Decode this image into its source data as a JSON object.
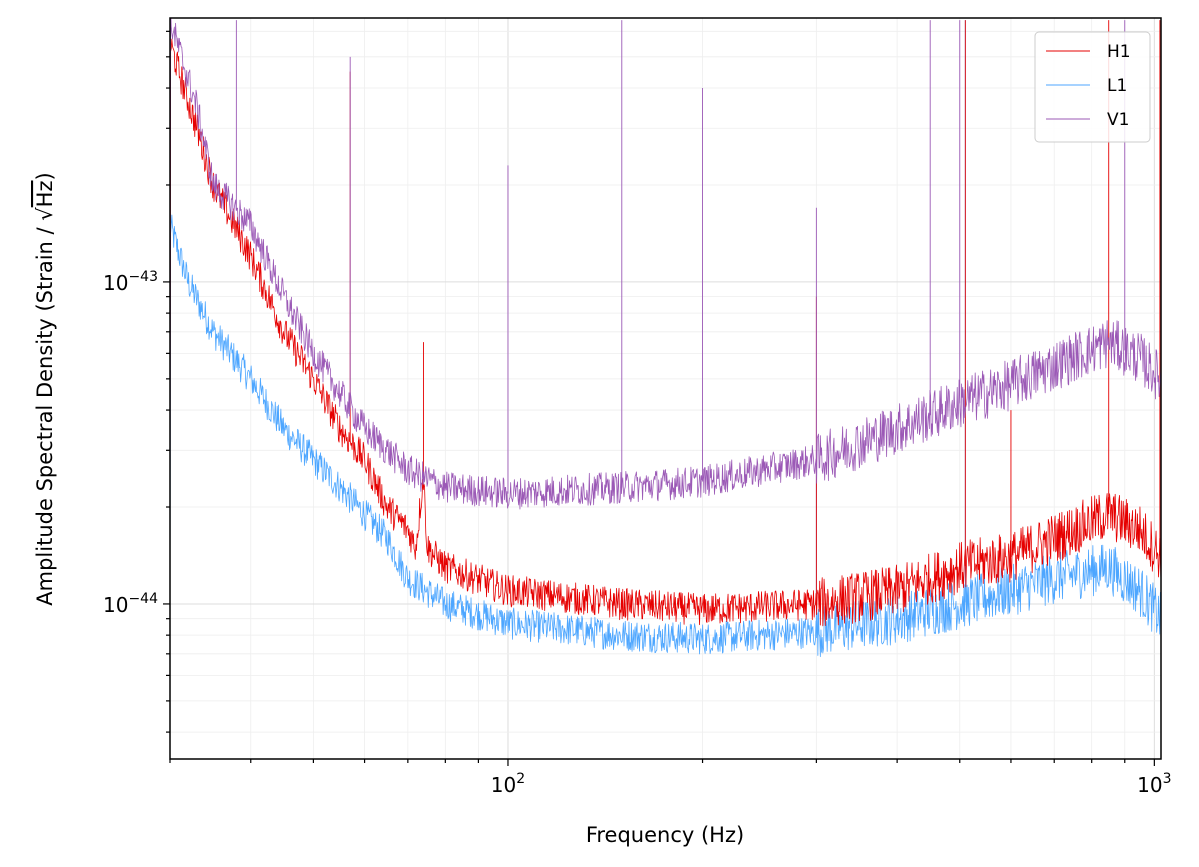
{
  "chart_data": {
    "type": "line",
    "title": "",
    "xlabel": "Frequency (Hz)",
    "ylabel_prefix": "Amplitude Spectral Density (Strain / ",
    "ylabel_radicand": "Hz",
    "ylabel_suffix": ")",
    "xscale": "log",
    "yscale": "log",
    "xlim": [
      30,
      1024
    ],
    "ylim": [
      3.3e-45,
      6.6e-43
    ],
    "grid": true,
    "legend_position": "top-right",
    "x_ticks": [
      {
        "value": 100,
        "base": "10",
        "exponent": "2"
      },
      {
        "value": 1000,
        "base": "10",
        "exponent": "3"
      }
    ],
    "y_ticks": [
      {
        "value": 1e-44,
        "base": "10",
        "exponent": "−44"
      },
      {
        "value": 1e-43,
        "base": "10",
        "exponent": "−43"
      }
    ],
    "series": [
      {
        "name": "L1",
        "color": "#4da6ff",
        "noise": 0.05,
        "points": [
          [
            30,
            1.5e-43
          ],
          [
            32,
            1e-43
          ],
          [
            35,
            7e-44
          ],
          [
            40,
            5e-44
          ],
          [
            45,
            3.5e-44
          ],
          [
            50,
            2.8e-44
          ],
          [
            55,
            2.3e-44
          ],
          [
            60,
            1.9e-44
          ],
          [
            65,
            1.6e-44
          ],
          [
            70,
            1.2e-44
          ],
          [
            80,
            1e-44
          ],
          [
            100,
            8.7e-45
          ],
          [
            150,
            8e-45
          ],
          [
            200,
            7.8e-45
          ],
          [
            300,
            8.2e-45
          ],
          [
            400,
            9e-45
          ],
          [
            500,
            1e-44
          ],
          [
            600,
            1.1e-44
          ],
          [
            700,
            1.2e-44
          ],
          [
            850,
            1.3e-44
          ],
          [
            950,
            1.1e-44
          ],
          [
            1024,
            9e-45
          ]
        ],
        "lines": [
          [
            300,
            3e-44
          ],
          [
            510,
            6.5e-43
          ]
        ]
      },
      {
        "name": "H1",
        "color": "#e60000",
        "noise": 0.05,
        "points": [
          [
            30,
            5.5e-43
          ],
          [
            33,
            3e-43
          ],
          [
            35,
            2e-43
          ],
          [
            40,
            1.2e-43
          ],
          [
            45,
            7e-44
          ],
          [
            50,
            5e-44
          ],
          [
            55,
            3.5e-44
          ],
          [
            60,
            2.8e-44
          ],
          [
            65,
            2e-44
          ],
          [
            70,
            1.7e-44
          ],
          [
            72,
            1.5e-44
          ],
          [
            74,
            2.5e-44
          ],
          [
            75,
            1.5e-44
          ],
          [
            80,
            1.3e-44
          ],
          [
            100,
            1.1e-44
          ],
          [
            150,
            1e-44
          ],
          [
            200,
            9.6e-45
          ],
          [
            300,
            1e-44
          ],
          [
            400,
            1.1e-44
          ],
          [
            500,
            1.3e-44
          ],
          [
            600,
            1.4e-44
          ],
          [
            700,
            1.6e-44
          ],
          [
            850,
            1.9e-44
          ],
          [
            950,
            1.7e-44
          ],
          [
            1024,
            1.4e-44
          ]
        ],
        "lines": [
          [
            57,
            4.5e-43
          ],
          [
            74,
            6.5e-44
          ],
          [
            300,
            9e-44
          ],
          [
            510,
            6.5e-43
          ],
          [
            600,
            4e-44
          ],
          [
            850,
            6.5e-43
          ],
          [
            1020,
            6.5e-43
          ]
        ]
      },
      {
        "name": "V1",
        "color": "#9b59b6",
        "noise": 0.05,
        "points": [
          [
            30,
            6.5e-43
          ],
          [
            33,
            3.5e-43
          ],
          [
            35,
            2e-43
          ],
          [
            40,
            1.5e-43
          ],
          [
            45,
            9e-44
          ],
          [
            50,
            6e-44
          ],
          [
            55,
            4.5e-44
          ],
          [
            60,
            3.5e-44
          ],
          [
            65,
            3e-44
          ],
          [
            70,
            2.6e-44
          ],
          [
            80,
            2.3e-44
          ],
          [
            100,
            2.2e-44
          ],
          [
            150,
            2.3e-44
          ],
          [
            200,
            2.4e-44
          ],
          [
            300,
            2.8e-44
          ],
          [
            400,
            3.5e-44
          ],
          [
            500,
            4.2e-44
          ],
          [
            600,
            4.8e-44
          ],
          [
            700,
            5.5e-44
          ],
          [
            850,
            6.5e-44
          ],
          [
            950,
            5.8e-44
          ],
          [
            1024,
            5e-44
          ]
        ],
        "lines": [
          [
            38,
            6.5e-43
          ],
          [
            57,
            5e-43
          ],
          [
            100,
            2.3e-43
          ],
          [
            150,
            6.5e-43
          ],
          [
            200,
            4e-43
          ],
          [
            300,
            1.7e-43
          ],
          [
            450,
            6.5e-43
          ],
          [
            500,
            6.5e-43
          ],
          [
            900,
            6.5e-43
          ]
        ]
      }
    ]
  }
}
